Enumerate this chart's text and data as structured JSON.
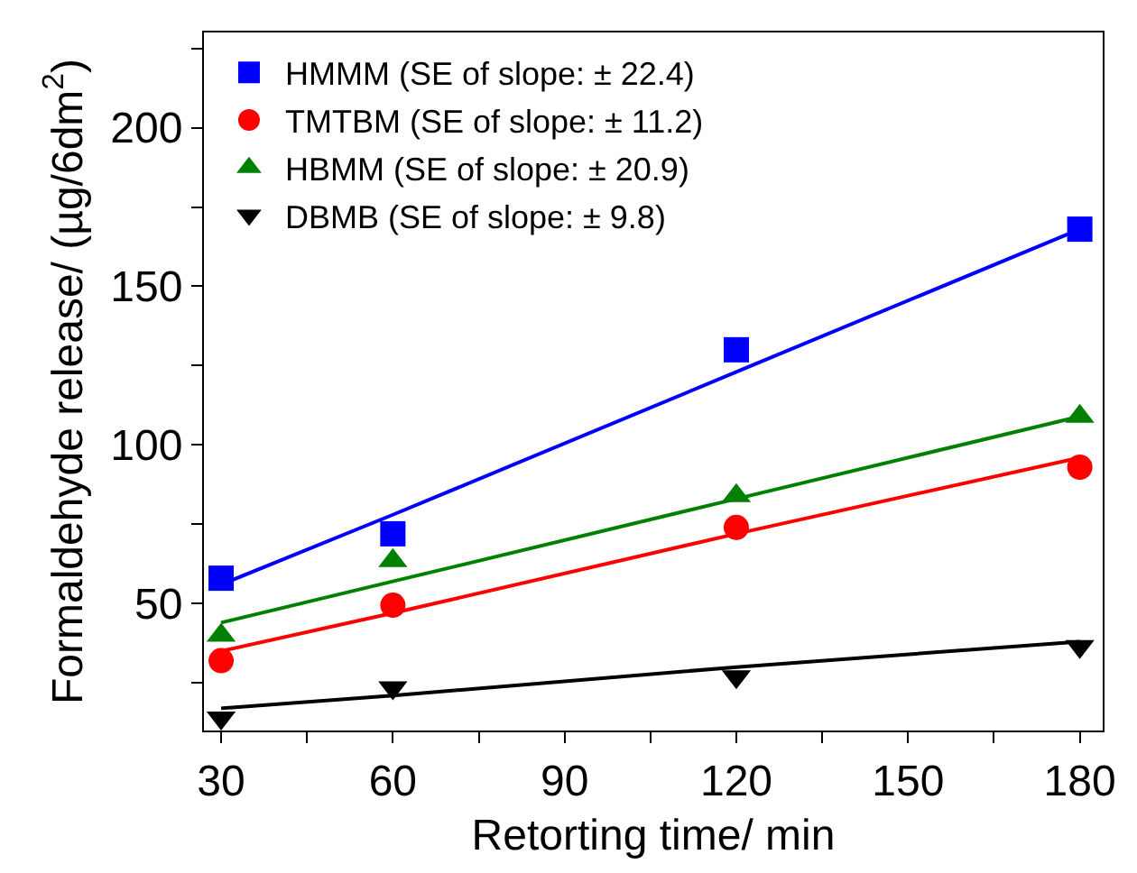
{
  "chart_data": {
    "type": "scatter",
    "xlabel": "Retorting time/ min",
    "ylabel": "Formaldehyde release/ (µg/6dm$^{2}$)",
    "x": [
      30,
      60,
      120,
      180
    ],
    "series": [
      {
        "name": "HMMM (SE of slope: ± 22.4)",
        "color": "#0000ff",
        "marker": "square",
        "values": [
          58,
          72,
          130,
          168
        ]
      },
      {
        "name": "TMTBM (SE of slope: ± 11.2)",
        "color": "#ff0000",
        "marker": "circle",
        "values": [
          32,
          49.5,
          74,
          93
        ]
      },
      {
        "name": "HBMM (SE of slope: ± 20.9)",
        "color": "#008000",
        "marker": "triangle",
        "values": [
          40,
          63.5,
          84,
          109
        ]
      },
      {
        "name": "DBMB (SE of slope: ± 9.8)",
        "color": "#000000",
        "marker": "triangle-down",
        "values": [
          14,
          23.5,
          27,
          36.5
        ]
      },
      {
        "type": "line",
        "color": "#0000ff",
        "values": [
          56,
          78,
          123,
          168
        ],
        "marker": "none"
      },
      {
        "type": "line",
        "color": "#ff0000",
        "values": [
          35,
          47,
          72,
          96
        ],
        "marker": "none"
      },
      {
        "type": "line",
        "color": "#008000",
        "values": [
          44,
          57,
          83,
          109
        ],
        "marker": "none"
      },
      {
        "type": "line",
        "color": "#000000",
        "values": [
          17,
          21,
          30,
          38
        ],
        "marker": "none"
      }
    ],
    "xlim": [
      27,
      184
    ],
    "ylim": [
      10,
      230
    ],
    "xticks": [
      30,
      {
        "value": 45,
        "label": null
      },
      60,
      {
        "value": 75,
        "label": null
      },
      90,
      {
        "value": 105,
        "label": null
      },
      120,
      {
        "value": 135,
        "label": null
      },
      150,
      {
        "value": 165,
        "label": null
      },
      180
    ],
    "yticks": [
      {
        "value": 25,
        "label": null
      },
      50,
      {
        "value": 75,
        "label": null
      },
      100,
      {
        "value": 125,
        "label": null
      },
      150,
      {
        "value": 175,
        "label": null
      },
      200,
      {
        "value": 225,
        "label": null
      }
    ],
    "legend": "top left",
    "line_style": "solid"
  }
}
